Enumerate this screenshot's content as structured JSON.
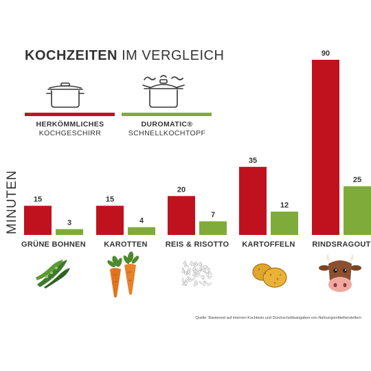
{
  "title_bold": "KOCHZEITEN",
  "title_light": "IM VERGLEICH",
  "legend": [
    {
      "line1": "HERKÖMMLICHES",
      "line2": "KOCHGESCHIRR",
      "color": "#c0121e",
      "icon": "cooking-pot-icon"
    },
    {
      "line1": "DUROMATIC®",
      "line2": "SCHNELLKOCHTOPF",
      "color": "#7fab3a",
      "icon": "pressure-cooker-icon"
    }
  ],
  "source": "Quelle: Basierend auf internen Kochtests und Durchschnittsangaben von Nahrungsmittelherstellern",
  "chart_data": {
    "type": "bar",
    "title": "KOCHZEITEN IM VERGLEICH",
    "ylabel": "MINUTEN",
    "categories": [
      "GRÜNE BOHNEN",
      "KAROTTEN",
      "REIS & RISOTTO",
      "KARTOFFELN",
      "RINDSRAGOUT"
    ],
    "series": [
      {
        "name": "HERKÖMMLICHES KOCHGESCHIRR",
        "values": [
          15,
          15,
          20,
          35,
          90
        ],
        "color": "#c0121e"
      },
      {
        "name": "DUROMATIC® SCHNELLKOCHTOPF",
        "values": [
          3,
          4,
          7,
          12,
          25
        ],
        "color": "#7fab3a"
      }
    ],
    "ylim": [
      0,
      90
    ],
    "grid": false,
    "legend_position": "top",
    "category_icons": [
      "green-beans-icon",
      "carrots-icon",
      "rice-icon",
      "potatoes-icon",
      "cow-icon"
    ]
  }
}
